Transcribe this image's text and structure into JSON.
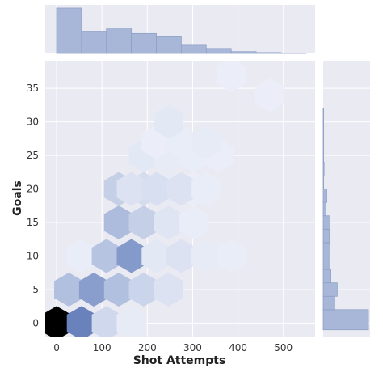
{
  "chart_data": {
    "type": "heatmap",
    "kind": "hexbin jointplot with marginal histograms",
    "xlabel": "Shot Attempts",
    "ylabel": "Goals",
    "xlim": [
      -25,
      570
    ],
    "ylim": [
      -2,
      39
    ],
    "x_ticks": [
      0,
      100,
      200,
      300,
      400,
      500
    ],
    "y_ticks": [
      0,
      5,
      10,
      15,
      20,
      25,
      30,
      35
    ],
    "grid": true,
    "colors": {
      "background": "#eaeaf2",
      "grid": "#ffffff",
      "hex_low": "#f2f4fb",
      "hex_high": "#000000",
      "marginal_bar": "#a8b7d7",
      "marginal_edge": "#8ea0c8"
    },
    "hexbins": [
      {
        "x": 0,
        "y": 0,
        "density": 1.0
      },
      {
        "x": 55,
        "y": 0,
        "density": 0.62
      },
      {
        "x": 110,
        "y": 0,
        "density": 0.18
      },
      {
        "x": 165,
        "y": 0,
        "density": 0.06
      },
      {
        "x": 27,
        "y": 5,
        "density": 0.3
      },
      {
        "x": 82,
        "y": 5,
        "density": 0.48
      },
      {
        "x": 137,
        "y": 5,
        "density": 0.3
      },
      {
        "x": 192,
        "y": 5,
        "density": 0.2
      },
      {
        "x": 247,
        "y": 5,
        "density": 0.12
      },
      {
        "x": 55,
        "y": 10,
        "density": 0.05
      },
      {
        "x": 110,
        "y": 10,
        "density": 0.28
      },
      {
        "x": 165,
        "y": 10,
        "density": 0.5
      },
      {
        "x": 220,
        "y": 10,
        "density": 0.08
      },
      {
        "x": 275,
        "y": 10,
        "density": 0.12
      },
      {
        "x": 330,
        "y": 10,
        "density": 0.06
      },
      {
        "x": 385,
        "y": 10,
        "density": 0.05
      },
      {
        "x": 137,
        "y": 15,
        "density": 0.32
      },
      {
        "x": 192,
        "y": 15,
        "density": 0.22
      },
      {
        "x": 247,
        "y": 15,
        "density": 0.1
      },
      {
        "x": 302,
        "y": 15,
        "density": 0.05
      },
      {
        "x": 137,
        "y": 20,
        "density": 0.22
      },
      {
        "x": 192,
        "y": 20,
        "density": 0.16
      },
      {
        "x": 247,
        "y": 20,
        "density": 0.06
      },
      {
        "x": 302,
        "y": 20,
        "density": 0.04
      },
      {
        "x": 165,
        "y": 20,
        "density": 0.12
      },
      {
        "x": 220,
        "y": 20,
        "density": 0.14
      },
      {
        "x": 275,
        "y": 20,
        "density": 0.12
      },
      {
        "x": 330,
        "y": 20,
        "density": 0.05
      },
      {
        "x": 192,
        "y": 25,
        "density": 0.08
      },
      {
        "x": 247,
        "y": 25,
        "density": 0.06
      },
      {
        "x": 302,
        "y": 25,
        "density": 0.05
      },
      {
        "x": 357,
        "y": 25,
        "density": 0.04
      },
      {
        "x": 220,
        "y": 27,
        "density": 0.04
      },
      {
        "x": 275,
        "y": 27,
        "density": 0.05
      },
      {
        "x": 330,
        "y": 27,
        "density": 0.06
      },
      {
        "x": 247,
        "y": 30,
        "density": 0.08
      },
      {
        "x": 385,
        "y": 37,
        "density": 0.04
      },
      {
        "x": 470,
        "y": 34,
        "density": 0.04
      }
    ],
    "x_marginal": {
      "bin_edges": [
        0,
        55,
        110,
        165,
        220,
        275,
        330,
        385,
        440,
        495,
        550
      ],
      "counts": [
        100,
        49,
        56,
        44,
        37,
        18,
        11,
        4,
        2,
        1
      ]
    },
    "y_marginal": {
      "bin_edges": [
        -1,
        2,
        4,
        6,
        8,
        10,
        12,
        14,
        16,
        18,
        20,
        22,
        24,
        26,
        28,
        30,
        32
      ],
      "counts": [
        100,
        26,
        31,
        17,
        13,
        15,
        14,
        15,
        6,
        8,
        1,
        2,
        1,
        1,
        1,
        1
      ]
    }
  }
}
